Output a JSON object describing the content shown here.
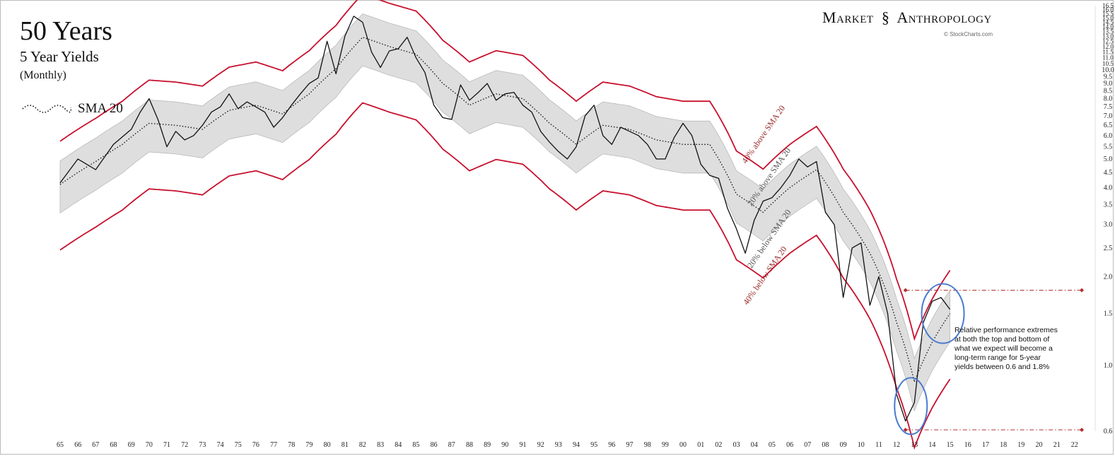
{
  "header": {
    "title": "50 Years",
    "subtitle": "5 Year Yields",
    "frequency": "(Monthly)",
    "legend_label": "SMA 20",
    "brand_left": "Market",
    "brand_right": "Anthropology",
    "credit": "© StockCharts.com"
  },
  "annotation": "Relative performance extremes at both the top and bottom of what we expect will become a long-term range for 5-year yields between 0.6 and 1.8%",
  "colors": {
    "price": "#111111",
    "band20": "#dedede",
    "band40": "#c8102e",
    "circle": "#4a7bd0",
    "range_line": "#b03030"
  },
  "chart_data": {
    "type": "line",
    "y_scale": "log",
    "ylim": [
      0.6,
      16.5
    ],
    "x_range": [
      1965,
      2023
    ],
    "x_tick_labels": [
      "65",
      "66",
      "67",
      "68",
      "69",
      "70",
      "71",
      "72",
      "73",
      "74",
      "75",
      "76",
      "77",
      "78",
      "79",
      "80",
      "81",
      "82",
      "83",
      "84",
      "85",
      "86",
      "87",
      "88",
      "89",
      "90",
      "91",
      "92",
      "93",
      "94",
      "95",
      "96",
      "97",
      "98",
      "99",
      "00",
      "01",
      "02",
      "03",
      "04",
      "05",
      "06",
      "07",
      "08",
      "09",
      "10",
      "11",
      "12",
      "13",
      "14",
      "15",
      "16",
      "17",
      "18",
      "19",
      "20",
      "21",
      "22"
    ],
    "y_tick_labels": [
      "0.6",
      "1.0",
      "1.5",
      "2.0",
      "2.5",
      "3.0",
      "3.5",
      "4.0",
      "4.5",
      "5.0",
      "5.5",
      "6.0",
      "6.5",
      "7.0",
      "7.5",
      "8.0",
      "8.5",
      "9.0",
      "9.5",
      "10.0",
      "10.5",
      "11.0",
      "11.5",
      "12.0",
      "12.5",
      "13.0",
      "13.5",
      "14.0",
      "14.5",
      "15.0",
      "15.5",
      "16.0",
      "16.5"
    ],
    "series": [
      {
        "name": "5 Year Yields",
        "points": [
          [
            1965.0,
            4.15
          ],
          [
            1966.0,
            5.0
          ],
          [
            1967.0,
            4.6
          ],
          [
            1968.0,
            5.6
          ],
          [
            1969.0,
            6.3
          ],
          [
            1969.5,
            7.2
          ],
          [
            1970.0,
            8.0
          ],
          [
            1970.5,
            6.8
          ],
          [
            1971.0,
            5.5
          ],
          [
            1971.5,
            6.2
          ],
          [
            1972.0,
            5.8
          ],
          [
            1972.5,
            6.0
          ],
          [
            1973.0,
            6.5
          ],
          [
            1973.5,
            7.2
          ],
          [
            1974.0,
            7.5
          ],
          [
            1974.5,
            8.3
          ],
          [
            1975.0,
            7.4
          ],
          [
            1975.5,
            7.8
          ],
          [
            1976.0,
            7.5
          ],
          [
            1976.5,
            7.2
          ],
          [
            1977.0,
            6.4
          ],
          [
            1977.5,
            6.9
          ],
          [
            1978.0,
            7.6
          ],
          [
            1978.5,
            8.3
          ],
          [
            1979.0,
            9.0
          ],
          [
            1979.5,
            9.4
          ],
          [
            1980.0,
            12.5
          ],
          [
            1980.5,
            9.7
          ],
          [
            1981.0,
            13.0
          ],
          [
            1981.5,
            15.2
          ],
          [
            1982.0,
            14.5
          ],
          [
            1982.5,
            11.5
          ],
          [
            1983.0,
            10.2
          ],
          [
            1983.5,
            11.6
          ],
          [
            1984.0,
            11.8
          ],
          [
            1984.5,
            12.9
          ],
          [
            1985.0,
            11.0
          ],
          [
            1985.5,
            9.8
          ],
          [
            1986.0,
            7.6
          ],
          [
            1986.5,
            6.9
          ],
          [
            1987.0,
            6.8
          ],
          [
            1987.5,
            8.9
          ],
          [
            1988.0,
            7.9
          ],
          [
            1988.5,
            8.4
          ],
          [
            1989.0,
            9.0
          ],
          [
            1989.5,
            7.9
          ],
          [
            1990.0,
            8.3
          ],
          [
            1990.5,
            8.4
          ],
          [
            1991.0,
            7.6
          ],
          [
            1991.5,
            7.2
          ],
          [
            1992.0,
            6.2
          ],
          [
            1992.5,
            5.7
          ],
          [
            1993.0,
            5.3
          ],
          [
            1993.5,
            5.0
          ],
          [
            1994.0,
            5.5
          ],
          [
            1994.5,
            7.0
          ],
          [
            1995.0,
            7.6
          ],
          [
            1995.5,
            6.0
          ],
          [
            1996.0,
            5.6
          ],
          [
            1996.5,
            6.4
          ],
          [
            1997.0,
            6.2
          ],
          [
            1997.5,
            6.0
          ],
          [
            1998.0,
            5.6
          ],
          [
            1998.5,
            5.0
          ],
          [
            1999.0,
            5.0
          ],
          [
            1999.5,
            5.9
          ],
          [
            2000.0,
            6.6
          ],
          [
            2000.5,
            6.0
          ],
          [
            2001.0,
            4.8
          ],
          [
            2001.5,
            4.4
          ],
          [
            2002.0,
            4.3
          ],
          [
            2002.5,
            3.4
          ],
          [
            2003.0,
            2.9
          ],
          [
            2003.5,
            2.4
          ],
          [
            2004.0,
            3.1
          ],
          [
            2004.5,
            3.6
          ],
          [
            2005.0,
            3.7
          ],
          [
            2005.5,
            4.0
          ],
          [
            2006.0,
            4.4
          ],
          [
            2006.5,
            5.0
          ],
          [
            2007.0,
            4.7
          ],
          [
            2007.5,
            4.9
          ],
          [
            2008.0,
            3.3
          ],
          [
            2008.5,
            3.0
          ],
          [
            2009.0,
            1.7
          ],
          [
            2009.5,
            2.5
          ],
          [
            2010.0,
            2.6
          ],
          [
            2010.5,
            1.6
          ],
          [
            2011.0,
            2.0
          ],
          [
            2011.5,
            1.5
          ],
          [
            2012.0,
            0.8
          ],
          [
            2012.5,
            0.65
          ],
          [
            2013.0,
            0.75
          ],
          [
            2013.5,
            1.4
          ],
          [
            2014.0,
            1.65
          ],
          [
            2014.5,
            1.7
          ],
          [
            2015.0,
            1.55
          ]
        ]
      },
      {
        "name": "SMA 20",
        "points": [
          [
            1965.0,
            4.1
          ],
          [
            1967.0,
            4.9
          ],
          [
            1968.5,
            5.6
          ],
          [
            1970.0,
            6.6
          ],
          [
            1971.5,
            6.5
          ],
          [
            1973.0,
            6.3
          ],
          [
            1974.5,
            7.3
          ],
          [
            1976.0,
            7.6
          ],
          [
            1977.5,
            7.1
          ],
          [
            1979.0,
            8.3
          ],
          [
            1980.5,
            10.1
          ],
          [
            1982.0,
            12.9
          ],
          [
            1983.5,
            12.0
          ],
          [
            1985.0,
            11.3
          ],
          [
            1986.5,
            9.0
          ],
          [
            1988.0,
            7.6
          ],
          [
            1989.5,
            8.3
          ],
          [
            1991.0,
            8.0
          ],
          [
            1992.5,
            6.6
          ],
          [
            1994.0,
            5.6
          ],
          [
            1995.5,
            6.5
          ],
          [
            1997.0,
            6.3
          ],
          [
            1998.5,
            5.8
          ],
          [
            2000.0,
            5.6
          ],
          [
            2001.5,
            5.6
          ],
          [
            2003.0,
            3.8
          ],
          [
            2004.5,
            3.3
          ],
          [
            2006.0,
            4.0
          ],
          [
            2007.5,
            4.6
          ],
          [
            2009.0,
            3.3
          ],
          [
            2010.5,
            2.4
          ],
          [
            2012.0,
            1.4
          ],
          [
            2013.0,
            0.88
          ],
          [
            2014.0,
            1.2
          ],
          [
            2015.0,
            1.5
          ]
        ]
      }
    ],
    "bands": [
      {
        "label": "40% above SMA 20",
        "factor": 1.4
      },
      {
        "label": "20% above SMA 20",
        "factor": 1.2
      },
      {
        "label": "20% below SMA 20",
        "factor": 0.8
      },
      {
        "label": "40% below SMA 20",
        "factor": 0.6
      }
    ],
    "range_lines": [
      1.8,
      0.6
    ]
  }
}
